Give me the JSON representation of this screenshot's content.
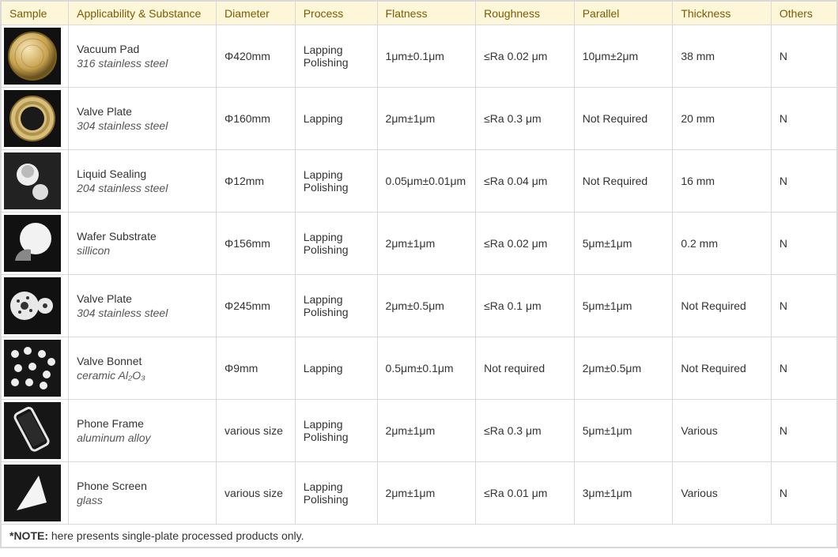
{
  "columns": [
    "Sample",
    "Applicability & Substance",
    "Diameter",
    "Process",
    "Flatness",
    "Roughness",
    "Parallel",
    "Thickness",
    "Others"
  ],
  "note_label": "*NOTE:",
  "note_text": " here presents single-plate processed products only.",
  "rows": [
    {
      "title": "Vacuum Pad",
      "subtitle": "316 stainless steel",
      "diameter": "Φ420mm",
      "process": [
        "Lapping",
        "Polishing"
      ],
      "flatness": "1μm±0.1μm",
      "roughness": "≤Ra 0.02  μm",
      "parallel": "10μm±2μm",
      "thickness": "38 mm",
      "others": "N",
      "icon": "disc-gold"
    },
    {
      "title": "Valve Plate",
      "subtitle": "304 stainless steel",
      "diameter": "Φ160mm",
      "process": [
        "Lapping"
      ],
      "flatness": "2μm±1μm",
      "roughness": "≤Ra 0.3  μm",
      "parallel": "Not Required",
      "thickness": "20 mm",
      "others": "N",
      "icon": "ring-gold"
    },
    {
      "title": "Liquid Sealing",
      "subtitle": "204 stainless steel",
      "diameter": "Φ12mm",
      "process": [
        "Lapping",
        "Polishing"
      ],
      "flatness": "0.05μm±0.01μm",
      "roughness": "≤Ra 0.04  μm",
      "parallel": "Not Required",
      "thickness": "16 mm",
      "others": "N",
      "icon": "two-parts"
    },
    {
      "title": "Wafer Substrate",
      "subtitle": "sillicon",
      "diameter": "Φ156mm",
      "process": [
        "Lapping",
        "Polishing"
      ],
      "flatness": "2μm±1μm",
      "roughness": "≤Ra 0.02  μm",
      "parallel": "5μm±1μm",
      "thickness": "0.2 mm",
      "others": "N",
      "icon": "wafer"
    },
    {
      "title": "Valve Plate",
      "subtitle": "304 stainless steel",
      "diameter": "Φ245mm",
      "process": [
        "Lapping",
        "Polishing"
      ],
      "flatness": "2μm±0.5μm",
      "roughness": "≤Ra 0.1  μm",
      "parallel": "5μm±1μm",
      "thickness": "Not Required",
      "others": "N",
      "icon": "two-discs"
    },
    {
      "title": "Valve Bonnet",
      "subtitle": "ceramic Al₂O₃",
      "diameter": "Φ9mm",
      "process": [
        "Lapping"
      ],
      "flatness": "0.5μm±0.1μm",
      "roughness": "Not required",
      "parallel": "2μm±0.5μm",
      "thickness": "Not Required",
      "others": "N",
      "icon": "many-dots"
    },
    {
      "title": "Phone Frame",
      "subtitle": "aluminum alloy",
      "diameter": "various size",
      "process": [
        "Lapping",
        "Polishing"
      ],
      "flatness": "2μm±1μm",
      "roughness": "≤Ra 0.3  μm",
      "parallel": "5μm±1μm",
      "thickness": "Various",
      "others": "N",
      "icon": "phone-frame"
    },
    {
      "title": "Phone Screen",
      "subtitle": "glass",
      "diameter": "various size",
      "process": [
        "Lapping",
        "Polishing"
      ],
      "flatness": "2μm±1μm",
      "roughness": "≤Ra 0.01  μm",
      "parallel": "3μm±1μm",
      "thickness": "Various",
      "others": "N",
      "icon": "triangle"
    }
  ],
  "icon_svg": {
    "disc-gold": "<svg viewBox='0 0 72 72'><defs><radialGradient id='g1' cx='40%' cy='35%' r='60%'><stop offset='0%' stop-color='#f8e6b8'/><stop offset='70%' stop-color='#c8a24e'/><stop offset='100%' stop-color='#6b5320'/></radialGradient></defs><rect width='72' height='72' fill='#111'/><circle cx='36' cy='36' r='30' fill='url(#g1)' stroke='#7a6020' stroke-width='2'/><circle cx='36' cy='36' r='22' fill='none' stroke='#8a7030' stroke-width='1' opacity='.5'/><circle cx='36' cy='36' r='14' fill='none' stroke='#8a7030' stroke-width='1' opacity='.4'/></svg>",
    "ring-gold": "<svg viewBox='0 0 72 72'><rect width='72' height='72' fill='#111'/><circle cx='36' cy='36' r='28' fill='#d9be7a' stroke='#8a7030' stroke-width='2'/><circle cx='36' cy='36' r='15' fill='#1a1a1a'/><circle cx='36' cy='36' r='20' fill='none' stroke='#9a803a' stroke-width='4' opacity='.7'/></svg>",
    "two-parts": "<svg viewBox='0 0 72 72'><rect width='72' height='72' fill='#222'/><circle cx='30' cy='28' r='14' fill='#eee'/><circle cx='30' cy='24' r='8' fill='#bbb'/><circle cx='46' cy='50' r='10' fill='#ddd'/></svg>",
    "wafer": "<svg viewBox='0 0 72 72'><rect width='72' height='72' fill='#111'/><circle cx='40' cy='30' r='20' fill='#f2f2f2'/><path d='M14 58 A16 16 0 0 1 34 44 L34 58 Z' fill='#888'/></svg>",
    "two-discs": "<svg viewBox='0 0 72 72'><rect width='72' height='72' fill='#111'/><circle cx='26' cy='36' r='18' fill='#e8e8e8'/><circle cx='26' cy='36' r='5' fill='#333'/><circle cx='18' cy='30' r='2' fill='#333'/><circle cx='34' cy='42' r='2' fill='#333'/><circle cx='30' cy='26' r='2' fill='#333'/><circle cx='20' cy='44' r='2' fill='#333'/><circle cx='52' cy='36' r='10' fill='#e8e8e8'/><circle cx='52' cy='36' r='3' fill='#333'/></svg>",
    "many-dots": "<svg viewBox='0 0 72 72'><rect width='72' height='72' fill='#161616'/><circle cx='14' cy='18' r='5' fill='#eee'/><circle cx='30' cy='14' r='5' fill='#eee'/><circle cx='48' cy='18' r='5' fill='#eee'/><circle cx='60' cy='28' r='5' fill='#eee'/><circle cx='18' cy='36' r='5' fill='#eee'/><circle cx='36' cy='34' r='5' fill='#eee'/><circle cx='54' cy='44' r='5' fill='#eee'/><circle cx='14' cy='54' r='5' fill='#eee'/><circle cx='32' cy='54' r='5' fill='#eee'/><circle cx='50' cy='58' r='5' fill='#eee'/></svg>",
    "phone-frame": "<svg viewBox='0 0 72 72'><rect width='72' height='72' fill='#161616'/><g transform='rotate(-28 36 36)'><rect x='24' y='8' width='24' height='52' rx='5' fill='none' stroke='#e6e6e6' stroke-width='3'/><rect x='27' y='13' width='18' height='42' rx='2' fill='#2a2a2a'/></g></svg>",
    "triangle": "<svg viewBox='0 0 72 72'><rect width='72' height='72' fill='#161616'/><polygon points='16,58 44,14 54,48' fill='#f4f4f4'/></svg>"
  }
}
